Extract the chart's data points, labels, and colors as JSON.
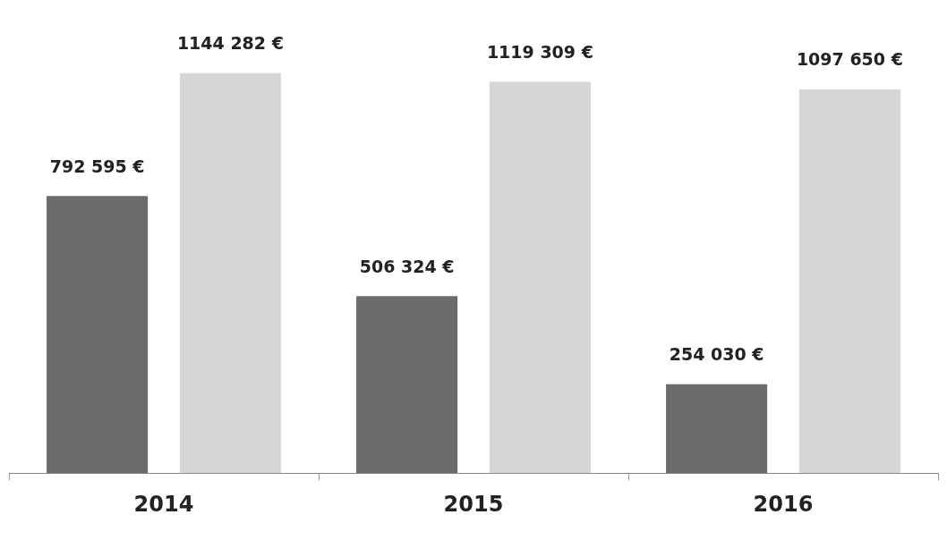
{
  "chart_data": {
    "type": "bar",
    "categories": [
      "2014",
      "2015",
      "2016"
    ],
    "series": [
      {
        "color": "#6b6b6b",
        "values": [
          792595,
          506324,
          254030
        ],
        "value_labels": [
          "792 595 €",
          "506 324 €",
          "254 030 €"
        ]
      },
      {
        "color": "#d6d6d6",
        "values": [
          1144282,
          1119309,
          1097650
        ],
        "value_labels": [
          "1144 282 €",
          "1119 309 €",
          "1097 650 €"
        ]
      }
    ],
    "grid": false,
    "legend": false
  }
}
